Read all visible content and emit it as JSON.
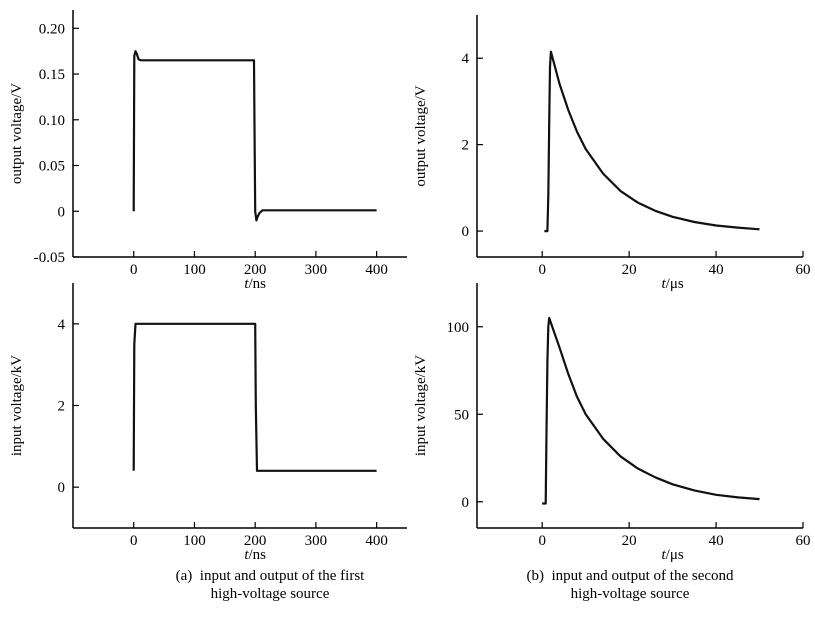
{
  "chart_data": [
    {
      "id": "a_output",
      "type": "line",
      "xlabel": "t/ns",
      "ylabel": "output voltage/V",
      "xlim": [
        -100,
        450
      ],
      "ylim": [
        -0.05,
        0.22
      ],
      "xticks": [
        0,
        100,
        200,
        300,
        400
      ],
      "yticks": [
        -0.05,
        0,
        0.05,
        0.1,
        0.15,
        0.2
      ],
      "ytick_labels": [
        "-0.05",
        "0",
        "0.05",
        "0.10",
        "0.15",
        "0.20"
      ],
      "series": [
        {
          "x": [
            0,
            1,
            3,
            5,
            8,
            12,
            20,
            198,
            199,
            200,
            202,
            204,
            207,
            212,
            220,
            400
          ],
          "y": [
            0,
            0.17,
            0.175,
            0.172,
            0.166,
            0.165,
            0.165,
            0.165,
            0.08,
            0.0,
            -0.01,
            -0.006,
            -0.002,
            0.001,
            0.001,
            0.001
          ]
        }
      ]
    },
    {
      "id": "b_output",
      "type": "line",
      "xlabel": "t/μs",
      "ylabel": "output voltage/V",
      "xlim": [
        -15,
        60
      ],
      "ylim": [
        -0.6,
        5
      ],
      "xticks": [
        0,
        20,
        40,
        60
      ],
      "yticks": [
        0,
        2,
        4
      ],
      "ytick_labels": [
        "0",
        "2",
        "4"
      ],
      "series": [
        {
          "x": [
            0.5,
            1.2,
            1.4,
            1.6,
            1.8,
            2,
            4,
            6,
            8,
            10,
            14,
            18,
            22,
            26,
            30,
            35,
            40,
            45,
            50
          ],
          "y": [
            0,
            0,
            0.8,
            2.5,
            3.8,
            4.15,
            3.4,
            2.8,
            2.3,
            1.9,
            1.33,
            0.93,
            0.66,
            0.47,
            0.33,
            0.21,
            0.13,
            0.08,
            0.04
          ]
        }
      ]
    },
    {
      "id": "a_input",
      "type": "line",
      "xlabel": "t/ns",
      "ylabel": "input voltage/kV",
      "xlim": [
        -100,
        450
      ],
      "ylim": [
        -1,
        5
      ],
      "xticks": [
        0,
        100,
        200,
        300,
        400
      ],
      "yticks": [
        0,
        2,
        4
      ],
      "ytick_labels": [
        "0",
        "2",
        "4"
      ],
      "series": [
        {
          "x": [
            0,
            1,
            3,
            200,
            201,
            203,
            400
          ],
          "y": [
            0.4,
            3.5,
            4,
            4,
            2,
            0.4,
            0.4
          ]
        }
      ]
    },
    {
      "id": "b_input",
      "type": "line",
      "xlabel": "t/μs",
      "ylabel": "input voltage/kV",
      "xlim": [
        -15,
        60
      ],
      "ylim": [
        -15,
        125
      ],
      "xticks": [
        0,
        20,
        40,
        60
      ],
      "yticks": [
        0,
        50,
        100
      ],
      "ytick_labels": [
        "0",
        "50",
        "100"
      ],
      "series": [
        {
          "x": [
            0,
            0.8,
            1,
            1.2,
            1.4,
            1.6,
            4,
            6,
            8,
            10,
            14,
            18,
            22,
            26,
            30,
            35,
            40,
            45,
            50
          ],
          "y": [
            -1,
            -1,
            40,
            80,
            100,
            105,
            88,
            73,
            60,
            50,
            36,
            26,
            19,
            14,
            10,
            6.5,
            4,
            2.5,
            1.5
          ]
        }
      ]
    }
  ],
  "captions": {
    "a": "(a)  input and output of the first\nhigh-voltage source",
    "b": "(b)  input and output of the second\nhigh-voltage source"
  }
}
